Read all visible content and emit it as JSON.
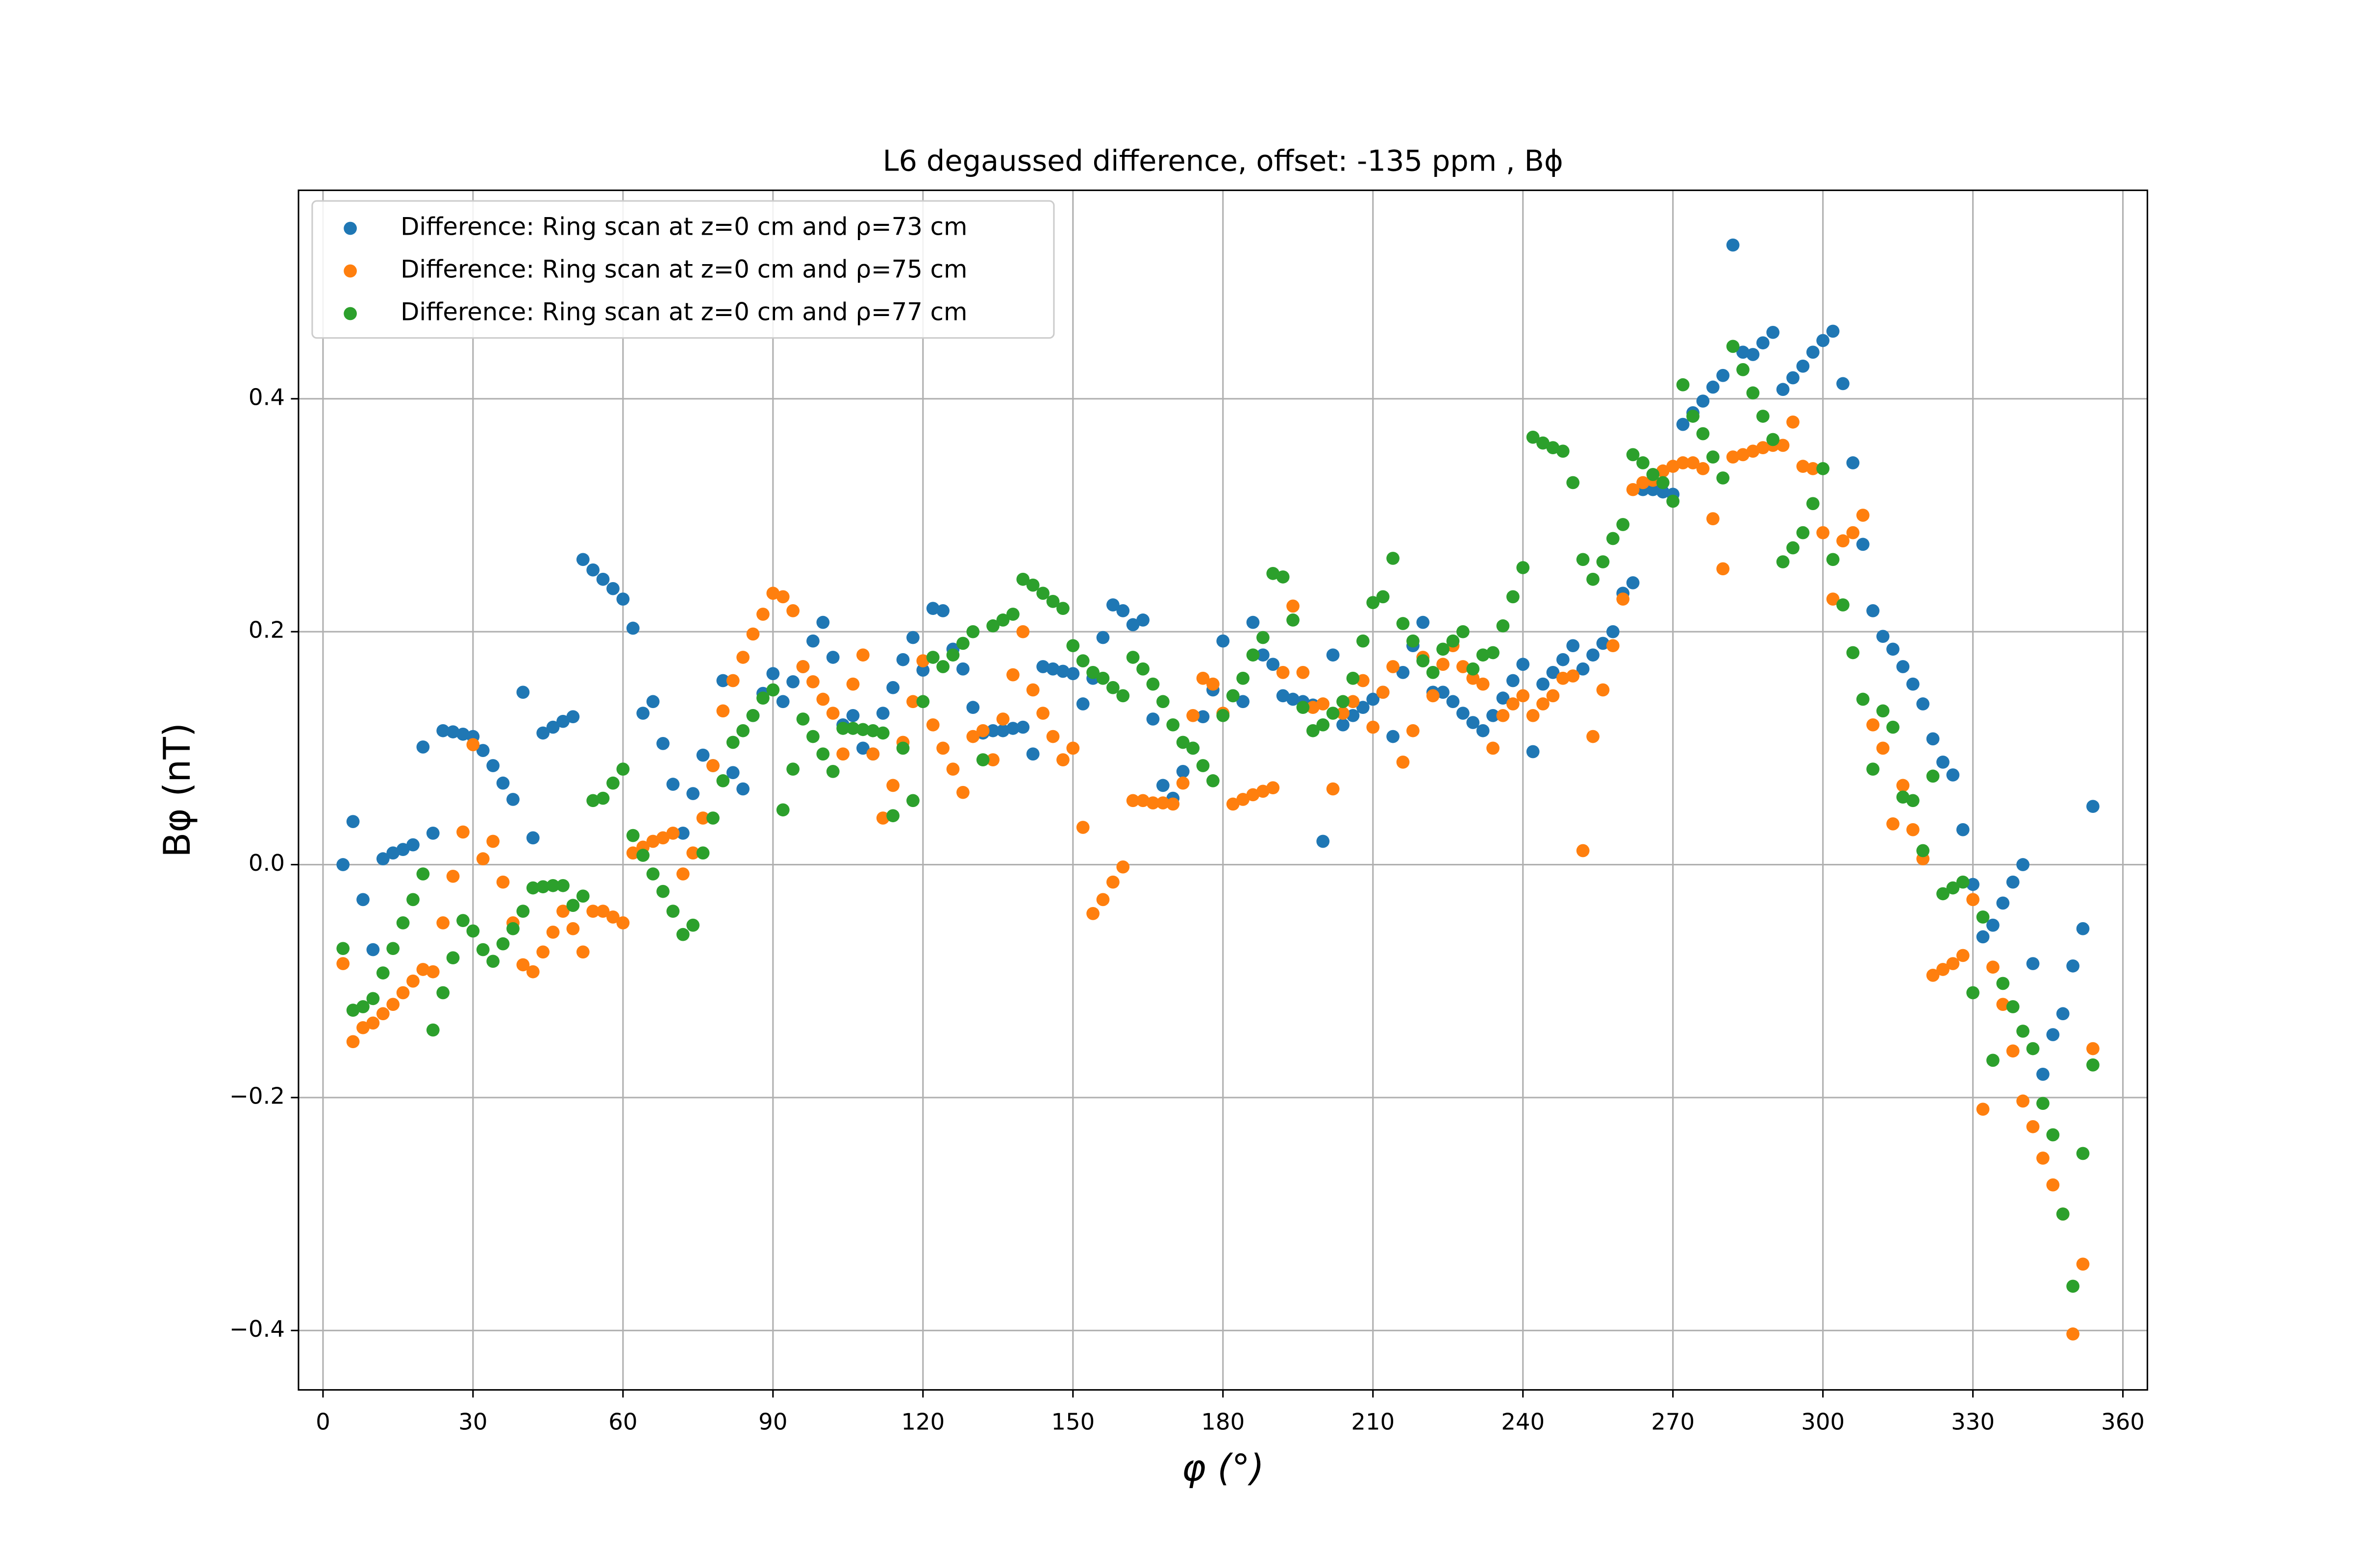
{
  "chart_data": {
    "type": "scatter",
    "title": "L6 degaussed difference, offset: -135 ppm , Bϕ",
    "x_label": "φ (°)",
    "y_label": "Bφ (nT)",
    "xlim": [
      -4.9,
      364.9
    ],
    "ylim": [
      -0.451,
      0.579
    ],
    "xticks": [
      0,
      30,
      60,
      90,
      120,
      150,
      180,
      210,
      240,
      270,
      300,
      330,
      360
    ],
    "yticks": [
      {
        "value": -0.4,
        "label": "−0.4"
      },
      {
        "value": -0.2,
        "label": "−0.2"
      },
      {
        "value": 0,
        "label": "0.0"
      },
      0.2,
      0.4
    ],
    "grid": true,
    "legend": "upper left",
    "x": [
      4,
      6,
      8,
      10,
      12,
      14,
      16,
      18,
      20,
      22,
      24,
      26,
      28,
      30,
      32,
      34,
      36,
      38,
      40,
      42,
      44,
      46,
      48,
      50,
      52,
      54,
      56,
      58,
      60,
      62,
      64,
      66,
      68,
      70,
      72,
      74,
      76,
      78,
      80,
      82,
      84,
      86,
      88,
      90,
      92,
      94,
      96,
      98,
      100,
      102,
      104,
      106,
      108,
      110,
      112,
      114,
      116,
      118,
      120,
      122,
      124,
      126,
      128,
      130,
      132,
      134,
      136,
      138,
      140,
      142,
      144,
      146,
      148,
      150,
      152,
      154,
      156,
      158,
      160,
      162,
      164,
      166,
      168,
      170,
      172,
      174,
      176,
      178,
      180,
      182,
      184,
      186,
      188,
      190,
      192,
      194,
      196,
      198,
      200,
      202,
      204,
      206,
      208,
      210,
      212,
      214,
      216,
      218,
      220,
      222,
      224,
      226,
      228,
      230,
      232,
      234,
      236,
      238,
      240,
      242,
      244,
      246,
      248,
      250,
      252,
      254,
      256,
      258,
      260,
      262,
      264,
      266,
      268,
      270,
      272,
      274,
      276,
      278,
      280,
      282,
      284,
      286,
      288,
      290,
      292,
      294,
      296,
      298,
      300,
      302,
      304,
      306,
      308,
      310,
      312,
      314,
      316,
      318,
      320,
      322,
      324,
      326,
      328,
      330,
      332,
      334,
      336,
      338,
      340,
      342,
      344,
      346,
      348,
      350,
      352,
      354
    ],
    "series": [
      {
        "name": "Difference: Ring scan at z=0 cm and ρ=73 cm",
        "color": "#1f77b4",
        "values": [
          0.0,
          0.037,
          -0.03,
          -0.073,
          0.005,
          0.01,
          0.013,
          0.017,
          0.101,
          0.027,
          0.115,
          0.114,
          0.112,
          0.11,
          0.098,
          0.085,
          0.07,
          0.056,
          0.148,
          0.023,
          0.113,
          0.118,
          0.123,
          0.127,
          0.262,
          0.253,
          0.245,
          0.237,
          0.228,
          0.203,
          0.13,
          0.14,
          0.104,
          0.069,
          0.027,
          0.061,
          0.094,
          0.085,
          0.158,
          0.079,
          0.065,
          0.128,
          0.147,
          0.164,
          0.14,
          0.157,
          0.17,
          0.192,
          0.208,
          0.178,
          0.12,
          0.128,
          0.1,
          0.095,
          0.13,
          0.152,
          0.176,
          0.195,
          0.167,
          0.22,
          0.218,
          0.185,
          0.168,
          0.135,
          0.113,
          0.115,
          0.115,
          0.117,
          0.118,
          0.095,
          0.17,
          0.168,
          0.166,
          0.164,
          0.138,
          0.16,
          0.195,
          0.223,
          0.218,
          0.206,
          0.21,
          0.125,
          0.068,
          0.057,
          0.08,
          0.1,
          0.127,
          0.15,
          0.192,
          0.145,
          0.14,
          0.208,
          0.18,
          0.172,
          0.145,
          0.142,
          0.14,
          0.137,
          0.02,
          0.18,
          0.12,
          0.128,
          0.135,
          0.142,
          0.148,
          0.11,
          0.165,
          0.188,
          0.208,
          0.148,
          0.148,
          0.14,
          0.13,
          0.122,
          0.115,
          0.128,
          0.143,
          0.158,
          0.172,
          0.097,
          0.155,
          0.165,
          0.176,
          0.188,
          0.168,
          0.18,
          0.19,
          0.2,
          0.233,
          0.242,
          0.322,
          0.322,
          0.32,
          0.318,
          0.378,
          0.388,
          0.398,
          0.41,
          0.42,
          0.532,
          0.44,
          0.438,
          0.448,
          0.457,
          0.408,
          0.418,
          0.428,
          0.44,
          0.45,
          0.458,
          0.413,
          0.345,
          0.275,
          0.218,
          0.196,
          0.185,
          0.17,
          0.155,
          0.138,
          0.108,
          0.088,
          0.077,
          0.03,
          -0.017,
          -0.062,
          -0.052,
          -0.033,
          -0.015,
          0.0,
          -0.085,
          -0.18,
          -0.146,
          -0.128,
          -0.087,
          -0.055,
          0.05
        ]
      },
      {
        "name": "Difference: Ring scan at z=0 cm and ρ=75 cm",
        "color": "#ff7f0e",
        "values": [
          -0.085,
          -0.152,
          -0.14,
          -0.136,
          -0.128,
          -0.12,
          -0.11,
          -0.1,
          -0.09,
          -0.092,
          -0.05,
          -0.01,
          0.028,
          0.103,
          0.005,
          0.02,
          -0.015,
          -0.05,
          -0.086,
          -0.092,
          -0.075,
          -0.058,
          -0.04,
          -0.055,
          -0.075,
          -0.04,
          -0.04,
          -0.045,
          -0.05,
          0.01,
          0.015,
          0.02,
          0.023,
          0.027,
          -0.008,
          0.01,
          0.04,
          0.085,
          0.132,
          0.158,
          0.178,
          0.198,
          0.215,
          0.233,
          0.23,
          0.218,
          0.17,
          0.157,
          0.142,
          0.13,
          0.095,
          0.155,
          0.18,
          0.095,
          0.04,
          0.068,
          0.105,
          0.14,
          0.175,
          0.12,
          0.1,
          0.082,
          0.062,
          0.11,
          0.115,
          0.09,
          0.125,
          0.163,
          0.2,
          0.15,
          0.13,
          0.11,
          0.09,
          0.1,
          0.032,
          -0.042,
          -0.03,
          -0.015,
          -0.002,
          0.055,
          0.055,
          0.053,
          0.053,
          0.052,
          0.07,
          0.128,
          0.16,
          0.155,
          0.13,
          0.052,
          0.056,
          0.06,
          0.063,
          0.066,
          0.165,
          0.222,
          0.165,
          0.135,
          0.138,
          0.065,
          0.13,
          0.14,
          0.158,
          0.118,
          0.148,
          0.17,
          0.088,
          0.115,
          0.178,
          0.145,
          0.172,
          0.188,
          0.17,
          0.16,
          0.155,
          0.1,
          0.128,
          0.138,
          0.145,
          0.128,
          0.138,
          0.145,
          0.16,
          0.162,
          0.012,
          0.11,
          0.15,
          0.188,
          0.228,
          0.322,
          0.328,
          0.33,
          0.338,
          0.342,
          0.345,
          0.345,
          0.34,
          0.297,
          0.254,
          0.35,
          0.352,
          0.355,
          0.358,
          0.36,
          0.36,
          0.38,
          0.342,
          0.34,
          0.285,
          0.228,
          0.278,
          0.285,
          0.3,
          0.12,
          0.1,
          0.035,
          0.068,
          0.03,
          0.005,
          -0.095,
          -0.09,
          -0.085,
          -0.078,
          -0.03,
          -0.21,
          -0.088,
          -0.12,
          -0.16,
          -0.203,
          -0.225,
          -0.252,
          -0.275,
          -0.3,
          -0.403,
          -0.343,
          -0.158
        ]
      },
      {
        "name": "Difference: Ring scan at z=0 cm and ρ=77 cm",
        "color": "#2ca02c",
        "values": [
          -0.072,
          -0.125,
          -0.122,
          -0.115,
          -0.093,
          -0.072,
          -0.05,
          -0.03,
          -0.008,
          -0.142,
          -0.11,
          -0.08,
          -0.048,
          -0.057,
          -0.073,
          -0.083,
          -0.068,
          -0.055,
          -0.04,
          -0.02,
          -0.019,
          -0.018,
          -0.018,
          -0.035,
          -0.027,
          0.055,
          0.057,
          0.07,
          0.082,
          0.025,
          0.008,
          -0.008,
          -0.023,
          -0.04,
          -0.06,
          -0.052,
          0.01,
          0.04,
          0.072,
          0.105,
          0.115,
          0.128,
          0.143,
          0.15,
          0.047,
          0.082,
          0.125,
          0.11,
          0.095,
          0.08,
          0.117,
          0.117,
          0.116,
          0.115,
          0.113,
          0.042,
          0.1,
          0.055,
          0.14,
          0.178,
          0.17,
          0.18,
          0.19,
          0.2,
          0.09,
          0.205,
          0.21,
          0.215,
          0.245,
          0.24,
          0.233,
          0.226,
          0.22,
          0.188,
          0.175,
          0.165,
          0.16,
          0.152,
          0.145,
          0.178,
          0.168,
          0.155,
          0.14,
          0.12,
          0.105,
          0.1,
          0.085,
          0.072,
          0.128,
          0.145,
          0.16,
          0.18,
          0.195,
          0.25,
          0.247,
          0.21,
          0.135,
          0.115,
          0.12,
          0.13,
          0.14,
          0.16,
          0.192,
          0.225,
          0.23,
          0.263,
          0.207,
          0.192,
          0.175,
          0.165,
          0.185,
          0.192,
          0.2,
          0.168,
          0.18,
          0.182,
          0.205,
          0.23,
          0.255,
          0.367,
          0.362,
          0.358,
          0.355,
          0.328,
          0.262,
          0.245,
          0.26,
          0.28,
          0.292,
          0.352,
          0.345,
          0.335,
          0.328,
          0.312,
          0.412,
          0.385,
          0.37,
          0.35,
          0.332,
          0.445,
          0.425,
          0.405,
          0.385,
          0.365,
          0.26,
          0.272,
          0.285,
          0.31,
          0.34,
          0.262,
          0.223,
          0.182,
          0.142,
          0.082,
          0.132,
          0.118,
          0.058,
          0.055,
          0.012,
          0.076,
          -0.025,
          -0.02,
          -0.015,
          -0.11,
          -0.045,
          -0.168,
          -0.102,
          -0.122,
          -0.143,
          -0.158,
          -0.205,
          -0.232,
          -0.3,
          -0.362,
          -0.248,
          -0.172
        ]
      }
    ]
  }
}
